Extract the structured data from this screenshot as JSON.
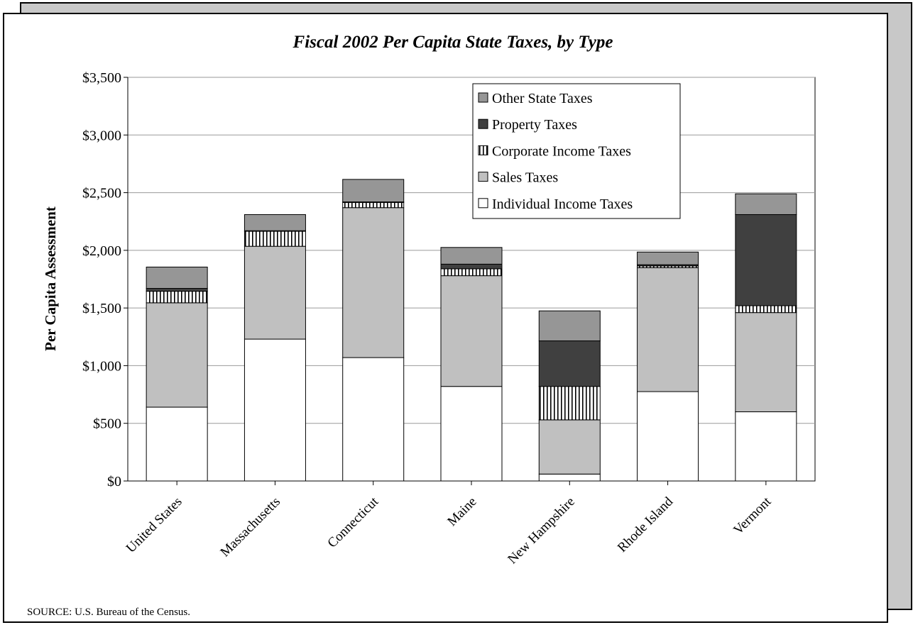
{
  "chart_data": {
    "type": "bar",
    "stacked": true,
    "title": "Fiscal 2002 Per Capita State Taxes, by Type",
    "xlabel": "",
    "ylabel": "Per Capita Assessment",
    "ylim": [
      0,
      3500
    ],
    "yticks": [
      0,
      500,
      1000,
      1500,
      2000,
      2500,
      3000,
      3500
    ],
    "ytick_labels": [
      "$0",
      "$500",
      "$1,000",
      "$1,500",
      "$2,000",
      "$2,500",
      "$3,000",
      "$3,500"
    ],
    "grid": true,
    "legend_position": "top-right",
    "categories": [
      "United States",
      "Massachusetts",
      "Connecticut",
      "Maine",
      "New Hampshire",
      "Rhode Island",
      "Vermont"
    ],
    "series": [
      {
        "name": "Individual Income Taxes",
        "color": "#ffffff",
        "pattern": "solid",
        "values": [
          640,
          1230,
          1070,
          820,
          60,
          775,
          600
        ]
      },
      {
        "name": "Sales Taxes",
        "color": "#c0c0c0",
        "pattern": "solid",
        "values": [
          905,
          805,
          1300,
          960,
          470,
          1075,
          860
        ]
      },
      {
        "name": "Corporate Income Taxes",
        "color": "#ffffff",
        "pattern": "vertical-stripes",
        "values": [
          100,
          130,
          45,
          60,
          290,
          15,
          60
        ]
      },
      {
        "name": "Property Taxes",
        "color": "#404040",
        "pattern": "solid",
        "values": [
          25,
          5,
          5,
          40,
          395,
          10,
          790
        ]
      },
      {
        "name": "Other State Taxes",
        "color": "#969696",
        "pattern": "solid",
        "values": [
          185,
          140,
          195,
          145,
          260,
          110,
          180
        ]
      }
    ]
  },
  "source_note": "SOURCE: U.S. Bureau of the Census."
}
